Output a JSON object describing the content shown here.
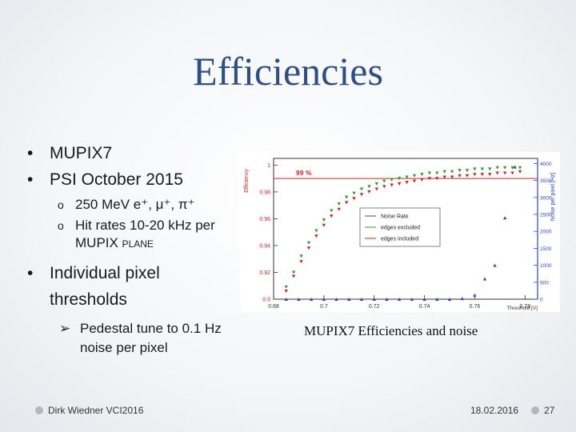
{
  "slide": {
    "title": "Efficiencies",
    "bullets": {
      "b1": "MUPIX7",
      "b2": "PSI October 2015",
      "sub1": "250 MeV e⁺, μ⁺, π⁺",
      "sub2a": "Hit rates 10-20 kHz per",
      "sub2b": "MUPIX plane",
      "b3a": "Individual pixel",
      "b3b": "thresholds",
      "arrow1a": "Pedestal tune to 0.1 Hz",
      "arrow1b": "noise per pixel"
    },
    "caption": "MUPIX7 Efficiencies and noise",
    "footer": {
      "author": "Dirk Wiedner VCI2016",
      "date": "18.02.2016",
      "page": "27"
    }
  },
  "chart_data": {
    "type": "scatter",
    "xlabel": "Threshold [V]",
    "ylabel": "Efficiency",
    "y2label": "Noise per pixel [Hz]",
    "xlim": [
      0.68,
      0.785
    ],
    "ylim": [
      0.9,
      1.005
    ],
    "y2lim": [
      0,
      4150
    ],
    "xticks": [
      "0.68",
      "0.7",
      "0.72",
      "0.74",
      "0.76",
      "0.78"
    ],
    "yticks": [
      "0.9",
      "0.92",
      "0.94",
      "0.96",
      "0.98",
      "1"
    ],
    "y2ticks": [
      "0",
      "500",
      "1000",
      "1500",
      "2000",
      "2500",
      "3000",
      "3500",
      "4000"
    ],
    "annotation": "99 %",
    "annotation_value": 0.99,
    "legend": [
      "Noise Rate",
      "edges excluded",
      "edges included"
    ],
    "series": [
      {
        "name": "edges included",
        "color": "#d62020",
        "axis": "left",
        "x": [
          0.685,
          0.688,
          0.691,
          0.694,
          0.697,
          0.7,
          0.703,
          0.706,
          0.709,
          0.712,
          0.715,
          0.718,
          0.721,
          0.724,
          0.727,
          0.73,
          0.733,
          0.736,
          0.739,
          0.742,
          0.745,
          0.748,
          0.751,
          0.754,
          0.757,
          0.76,
          0.763,
          0.766,
          0.769,
          0.772,
          0.775,
          0.778
        ],
        "y": [
          0.906,
          0.917,
          0.928,
          0.938,
          0.947,
          0.955,
          0.962,
          0.967,
          0.972,
          0.975,
          0.978,
          0.98,
          0.982,
          0.984,
          0.985,
          0.986,
          0.987,
          0.988,
          0.989,
          0.99,
          0.99,
          0.991,
          0.991,
          0.992,
          0.992,
          0.993,
          0.993,
          0.993,
          0.994,
          0.994,
          0.994,
          0.995
        ]
      },
      {
        "name": "edges excluded",
        "color": "#2aa12a",
        "axis": "left",
        "x": [
          0.685,
          0.688,
          0.691,
          0.694,
          0.697,
          0.7,
          0.703,
          0.706,
          0.709,
          0.712,
          0.715,
          0.718,
          0.721,
          0.724,
          0.727,
          0.73,
          0.733,
          0.736,
          0.739,
          0.742,
          0.745,
          0.748,
          0.751,
          0.754,
          0.757,
          0.76,
          0.763,
          0.766,
          0.769,
          0.772,
          0.775,
          0.778
        ],
        "y": [
          0.909,
          0.92,
          0.932,
          0.942,
          0.951,
          0.959,
          0.966,
          0.971,
          0.976,
          0.979,
          0.982,
          0.984,
          0.986,
          0.988,
          0.989,
          0.99,
          0.991,
          0.992,
          0.993,
          0.994,
          0.994,
          0.995,
          0.995,
          0.996,
          0.996,
          0.997,
          0.997,
          0.997,
          0.998,
          0.998,
          0.998,
          0.998
        ]
      },
      {
        "name": "Noise Rate",
        "color": "#2c46c8",
        "axis": "right",
        "x": [
          0.685,
          0.69,
          0.695,
          0.7,
          0.705,
          0.71,
          0.715,
          0.72,
          0.725,
          0.73,
          0.735,
          0.74,
          0.745,
          0.75,
          0.755,
          0.76,
          0.764,
          0.768,
          0.772,
          0.776
        ],
        "y": [
          0,
          0,
          0,
          0,
          0,
          0,
          0,
          0,
          0,
          0,
          0,
          0,
          0,
          0,
          20,
          120,
          600,
          1000,
          2400,
          3900
        ]
      }
    ]
  }
}
